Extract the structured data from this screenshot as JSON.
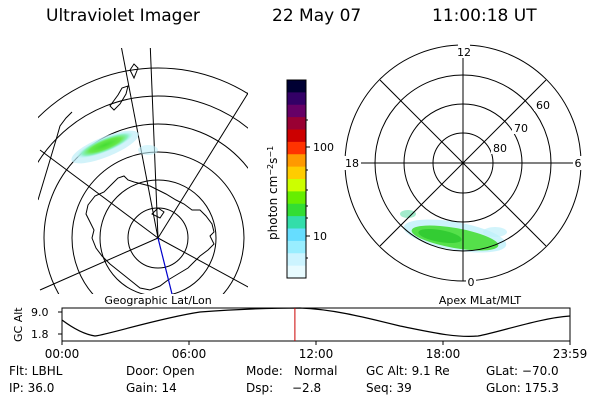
{
  "header": {
    "instrument": "Ultraviolet Imager",
    "date": "22 May 07",
    "time": "11:00:18 UT"
  },
  "colorbar": {
    "label_html": "photon cm<tspan baseline-shift=\"super\" font-size=\"8\">−2</tspan>s<tspan baseline-shift=\"super\" font-size=\"8\">−1</tspan>",
    "tick_100": "100",
    "tick_10": "10",
    "colors": [
      "#000033",
      "#330066",
      "#660066",
      "#990033",
      "#cc0000",
      "#ff3300",
      "#ff9900",
      "#ffcc00",
      "#ccff00",
      "#66ee00",
      "#33dd33",
      "#33ddaa",
      "#66ddff",
      "#99eeff",
      "#ccf4ff",
      "#e8fbff"
    ]
  },
  "left_map": {
    "caption": "Geographic Lat/Lon"
  },
  "right_map": {
    "caption": "Apex MLat/MLT",
    "mlt_12": "12",
    "mlt_18": "18",
    "mlt_6": "6",
    "mlt_0": "0",
    "lat_60": "60",
    "lat_70": "70",
    "lat_80": "80"
  },
  "altitude_plot": {
    "ylabel": "GC Alt",
    "y_top": "9.0",
    "y_bottom": "1.8",
    "x_ticks": [
      "00:00",
      "06:00",
      "12:00",
      "18:00",
      "23:59"
    ],
    "current_time_fraction": 0.4585
  },
  "status": {
    "flt": "Flt: LBHL",
    "ip": "IP: 36.0",
    "door": "Door: Open",
    "gain": "Gain: 14",
    "mode_label": "Mode:",
    "mode_value": "Normal",
    "dsp_label": "Dsp:",
    "dsp_value": "−2.8",
    "gc_alt": "GC Alt: 9.1 Re",
    "seq": "Seq: 39",
    "glat": "GLat: −70.0",
    "glon": "GLon: 175.3"
  },
  "colors": {
    "line": "#000000",
    "marker": "#cc0000",
    "meridian": "#0000cc"
  }
}
